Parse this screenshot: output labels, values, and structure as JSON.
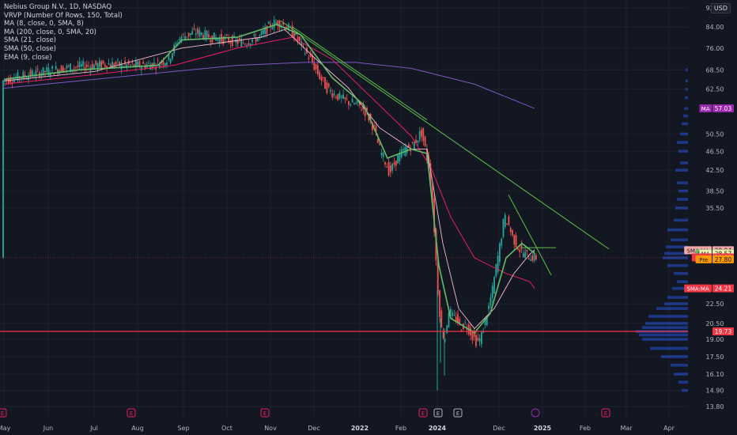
{
  "legend": {
    "title": "Nebius Group N.V., 1D, NASDAQ",
    "indicators": [
      "VRVP (Number Of Rows, 150, Total)",
      "MA (8, close, 0, SMA, 8)",
      "MA (200, close, 0, SMA, 20)",
      "SMA (21, close)",
      "SMA (50, close)",
      "EMA (9, close)"
    ]
  },
  "currency": "USD",
  "chart_data": {
    "type": "candlestick",
    "x_ticks": [
      "May",
      "Jun",
      "Jul",
      "Aug",
      "Sep",
      "Oct",
      "Nov",
      "Dec",
      "2022",
      "Feb",
      "2024",
      "Dec",
      "2025",
      "Feb",
      "Mar",
      "Apr"
    ],
    "y_ticks": [
      92.0,
      84.0,
      76.0,
      68.5,
      62.5,
      57.03,
      50.5,
      46.5,
      42.5,
      38.5,
      35.5,
      29.04,
      28.61,
      28.57,
      28.06,
      27.8,
      24.21,
      22.5,
      20.5,
      19.73,
      19.0,
      17.5,
      16.1,
      14.9,
      13.8
    ],
    "price_labels": [
      {
        "text": "MA",
        "value": "57.03",
        "color": "#9c27b0"
      },
      {
        "text": "SMA:MA",
        "value": "29.04",
        "color": "#f7a8a8"
      },
      {
        "text": "EMA",
        "value": "28.61",
        "color": "#66bb6a"
      },
      {
        "text": "MA",
        "value": "28.57",
        "color": "#f0f0b0"
      },
      {
        "text": "NBIS",
        "value": "28.06",
        "color": "#f23645"
      },
      {
        "text": "Pre",
        "value": "27.80",
        "color": "#ff9800"
      },
      {
        "text": "SMA:MA",
        "value": "24.21",
        "color": "#f23645"
      },
      {
        "text": "",
        "value": "19.73",
        "color": "#f23645"
      }
    ],
    "horizontal_line": 19.73,
    "colors": {
      "up": "#26a69a",
      "down": "#ef5350",
      "volume_profile": "#2962ff",
      "ma200": "#7e57c2",
      "sma50": "#e91e63",
      "sma21": "#f8bbd0",
      "ema9": "#66bb6a",
      "trendline": "#5fbf4a"
    },
    "event_markers": [
      "E",
      "E",
      "E",
      "E",
      "E",
      "E",
      "E",
      "E"
    ],
    "ylim": [
      13.8,
      92.0
    ],
    "scale": "log"
  }
}
